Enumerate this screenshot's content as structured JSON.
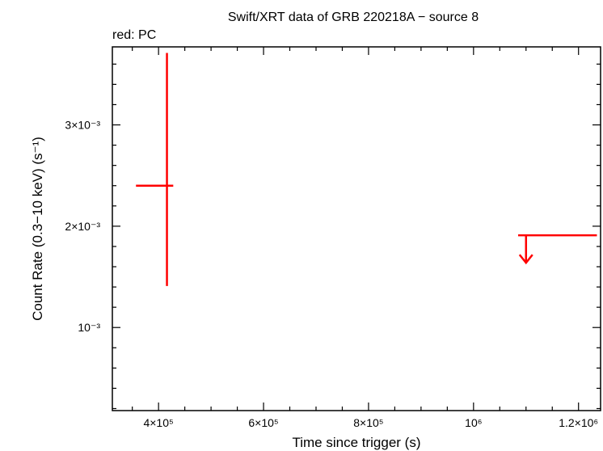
{
  "chart_data": {
    "type": "scatter",
    "title": "Swift/XRT data of GRB 220218A − source 8",
    "subtitle": "red: PC",
    "xlabel": "Time since trigger (s)",
    "ylabel": "Count Rate (0.3−10 keV) (s⁻¹)",
    "xlim": [
      312000,
      1242000
    ],
    "ylim": [
      0.00018,
      0.00377
    ],
    "grid": false,
    "x_ticks": [
      {
        "value": 400000,
        "label": "4×10⁵"
      },
      {
        "value": 600000,
        "label": "6×10⁵"
      },
      {
        "value": 800000,
        "label": "8×10⁵"
      },
      {
        "value": 1000000,
        "label": "10⁶"
      },
      {
        "value": 1200000,
        "label": "1.2×10⁶"
      }
    ],
    "y_ticks": [
      {
        "value": 0.001,
        "label": "10⁻³"
      },
      {
        "value": 0.002,
        "label": "2×10⁻³"
      },
      {
        "value": 0.003,
        "label": "3×10⁻³"
      }
    ],
    "series": [
      {
        "name": "PC",
        "color": "#ff0000",
        "points": [
          {
            "x": 416000,
            "x_lo": 357000,
            "x_hi": 428000,
            "y": 0.0024,
            "y_lo": 0.00141,
            "y_hi": 0.00371
          }
        ],
        "upper_limits": [
          {
            "x": 1100000,
            "x_lo": 1085000,
            "x_hi": 1235000,
            "y": 0.00191
          }
        ]
      }
    ]
  }
}
